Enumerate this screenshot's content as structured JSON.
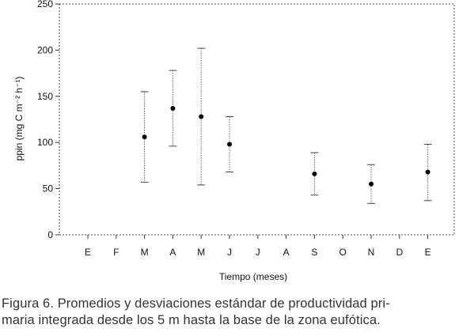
{
  "chart_data": {
    "type": "scatter",
    "title": "",
    "xlabel": "Tiempo (meses)",
    "ylabel": "ppin (mg C m⁻² h⁻¹)",
    "ylim": [
      0,
      250
    ],
    "yticks": [
      0,
      50,
      100,
      150,
      200,
      250
    ],
    "categories": [
      "E",
      "F",
      "M",
      "A",
      "M",
      "J",
      "J",
      "A",
      "S",
      "O",
      "N",
      "D",
      "E"
    ],
    "series": [
      {
        "points": [
          {
            "category_index": 2,
            "x": "M",
            "y": 106,
            "low": 57,
            "high": 155
          },
          {
            "category_index": 3,
            "x": "A",
            "y": 137,
            "low": 96,
            "high": 178
          },
          {
            "category_index": 4,
            "x": "M",
            "y": 128,
            "low": 54,
            "high": 202
          },
          {
            "category_index": 5,
            "x": "J",
            "y": 98,
            "low": 68,
            "high": 128
          },
          {
            "category_index": 8,
            "x": "S",
            "y": 66,
            "low": 43,
            "high": 89
          },
          {
            "category_index": 10,
            "x": "N",
            "y": 55,
            "low": 34,
            "high": 76
          },
          {
            "category_index": 12,
            "x": "E",
            "y": 68,
            "low": 37,
            "high": 98
          }
        ]
      }
    ],
    "grid": false,
    "legend": "none"
  },
  "caption": {
    "line1": "Figura 6. Promedios y desviaciones estándar de productividad pri-",
    "line2": "maria integrada desde los 5 m hasta la base de la zona eufótica."
  }
}
